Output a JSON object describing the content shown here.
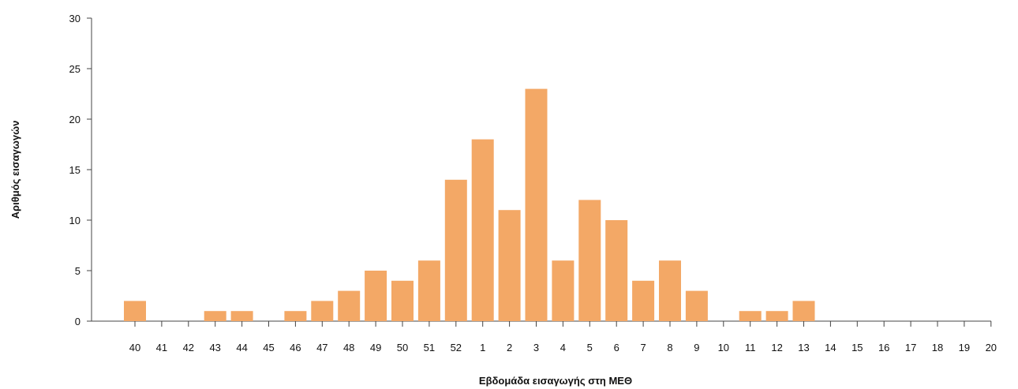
{
  "chart_data": {
    "type": "bar",
    "categories": [
      "40",
      "41",
      "42",
      "43",
      "44",
      "45",
      "46",
      "47",
      "48",
      "49",
      "50",
      "51",
      "52",
      "1",
      "2",
      "3",
      "4",
      "5",
      "6",
      "7",
      "8",
      "9",
      "10",
      "11",
      "12",
      "13",
      "14",
      "15",
      "16",
      "17",
      "18",
      "19",
      "20"
    ],
    "values": [
      2,
      0,
      0,
      1,
      1,
      0,
      1,
      2,
      3,
      5,
      4,
      6,
      14,
      18,
      11,
      23,
      6,
      12,
      10,
      4,
      6,
      3,
      0,
      1,
      1,
      2,
      0,
      0,
      0,
      0,
      0,
      0,
      0
    ],
    "xlabel": "Εβδομάδα εισαγωγής στη ΜΕΘ",
    "ylabel": "Αριθμός εισαγωγών",
    "ylim": [
      0,
      30
    ],
    "yticks": [
      0,
      5,
      10,
      15,
      20,
      25,
      30
    ],
    "grid": false,
    "bar_color": "#f3a866"
  }
}
